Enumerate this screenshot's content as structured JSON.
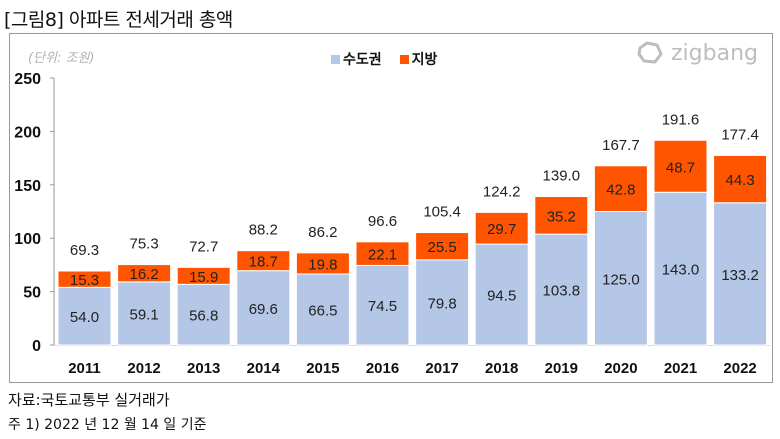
{
  "figure": {
    "title": "[그림8] 아파트 전세거래 총액",
    "unit_label": "(단위: 조원)",
    "logo_text": "zigbang",
    "source": "자료:국토교통부 실거래가",
    "note": "주 1) 2022 년 12 월 14 일 기준"
  },
  "colors": {
    "capital": "#b4c7e7",
    "regional": "#ff5500",
    "axis": "#999999",
    "logo": "#bdbdbd"
  },
  "chart_data": {
    "type": "bar",
    "stacked": true,
    "title": "아파트 전세거래 총액",
    "xlabel": "",
    "ylabel": "(단위: 조원)",
    "ylim": [
      0,
      250
    ],
    "yticks": [
      0,
      50,
      100,
      150,
      200,
      250
    ],
    "grid": false,
    "legend_position": "top-center",
    "categories": [
      "2011",
      "2012",
      "2013",
      "2014",
      "2015",
      "2016",
      "2017",
      "2018",
      "2019",
      "2020",
      "2021",
      "2022"
    ],
    "series": [
      {
        "name": "수도권",
        "color": "#b4c7e7",
        "values": [
          54.0,
          59.1,
          56.8,
          69.6,
          66.5,
          74.5,
          79.8,
          94.5,
          103.8,
          125.0,
          143.0,
          133.2
        ]
      },
      {
        "name": "지방",
        "color": "#ff5500",
        "values": [
          15.3,
          16.2,
          15.9,
          18.7,
          19.8,
          22.1,
          25.5,
          29.7,
          35.2,
          42.8,
          48.7,
          44.3
        ]
      }
    ],
    "totals": [
      69.3,
      75.3,
      72.7,
      88.2,
      86.2,
      96.6,
      105.4,
      124.2,
      139.0,
      167.7,
      191.6,
      177.4
    ]
  }
}
